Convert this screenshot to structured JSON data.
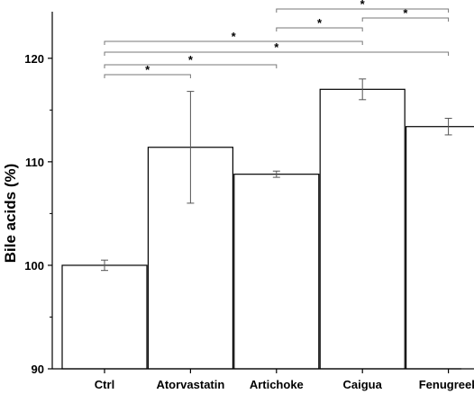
{
  "chart_data": {
    "type": "bar",
    "title": "",
    "xlabel": "",
    "ylabel": "Bile acids (%)",
    "categories": [
      "Ctrl",
      "Atorvastatin",
      "Artichoke",
      "Caigua",
      "Fenugreek"
    ],
    "values": [
      100.0,
      111.4,
      108.8,
      117.0,
      113.4
    ],
    "errors": [
      0.5,
      5.4,
      0.3,
      1.0,
      0.8
    ],
    "ylim": [
      90,
      124.5
    ],
    "yticks": [
      "90",
      "100",
      "110",
      "120"
    ],
    "grid": false,
    "significance": [
      {
        "from": 0,
        "to": 1,
        "label": "*"
      },
      {
        "from": 0,
        "to": 2,
        "label": "*"
      },
      {
        "from": 0,
        "to": 4,
        "label": "*"
      },
      {
        "from": 0,
        "to": 3,
        "label": "*"
      },
      {
        "from": 2,
        "to": 3,
        "label": "*"
      },
      {
        "from": 3,
        "to": 4,
        "label": "*"
      },
      {
        "from": 2,
        "to": 4,
        "label": "*"
      }
    ]
  }
}
